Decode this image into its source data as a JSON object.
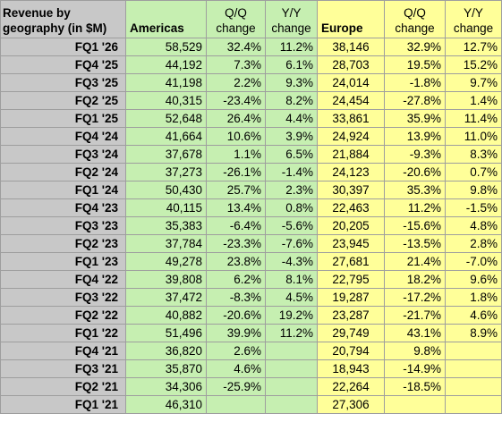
{
  "header": {
    "label": "Revenue by\ngeography (in $M)",
    "americas": "Americas",
    "europe": "Europe",
    "qq": "Q/Q\nchange",
    "yy": "Y/Y\nchange"
  },
  "rows": [
    {
      "q": "FQ1 '26",
      "a": "58,529",
      "aqq": "32.4%",
      "ayy": "11.2%",
      "e": "38,146",
      "eqq": "32.9%",
      "eyy": "12.7%"
    },
    {
      "q": "FQ4 '25",
      "a": "44,192",
      "aqq": "7.3%",
      "ayy": "6.1%",
      "e": "28,703",
      "eqq": "19.5%",
      "eyy": "15.2%"
    },
    {
      "q": "FQ3 '25",
      "a": "41,198",
      "aqq": "2.2%",
      "ayy": "9.3%",
      "e": "24,014",
      "eqq": "-1.8%",
      "eyy": "9.7%"
    },
    {
      "q": "FQ2 '25",
      "a": "40,315",
      "aqq": "-23.4%",
      "ayy": "8.2%",
      "e": "24,454",
      "eqq": "-27.8%",
      "eyy": "1.4%"
    },
    {
      "q": "FQ1 '25",
      "a": "52,648",
      "aqq": "26.4%",
      "ayy": "4.4%",
      "e": "33,861",
      "eqq": "35.9%",
      "eyy": "11.4%"
    },
    {
      "q": "FQ4 '24",
      "a": "41,664",
      "aqq": "10.6%",
      "ayy": "3.9%",
      "e": "24,924",
      "eqq": "13.9%",
      "eyy": "11.0%"
    },
    {
      "q": "FQ3 '24",
      "a": "37,678",
      "aqq": "1.1%",
      "ayy": "6.5%",
      "e": "21,884",
      "eqq": "-9.3%",
      "eyy": "8.3%"
    },
    {
      "q": "FQ2 '24",
      "a": "37,273",
      "aqq": "-26.1%",
      "ayy": "-1.4%",
      "e": "24,123",
      "eqq": "-20.6%",
      "eyy": "0.7%"
    },
    {
      "q": "FQ1 '24",
      "a": "50,430",
      "aqq": "25.7%",
      "ayy": "2.3%",
      "e": "30,397",
      "eqq": "35.3%",
      "eyy": "9.8%"
    },
    {
      "q": "FQ4 '23",
      "a": "40,115",
      "aqq": "13.4%",
      "ayy": "0.8%",
      "e": "22,463",
      "eqq": "11.2%",
      "eyy": "-1.5%"
    },
    {
      "q": "FQ3 '23",
      "a": "35,383",
      "aqq": "-6.4%",
      "ayy": "-5.6%",
      "e": "20,205",
      "eqq": "-15.6%",
      "eyy": "4.8%"
    },
    {
      "q": "FQ2 '23",
      "a": "37,784",
      "aqq": "-23.3%",
      "ayy": "-7.6%",
      "e": "23,945",
      "eqq": "-13.5%",
      "eyy": "2.8%"
    },
    {
      "q": "FQ1 '23",
      "a": "49,278",
      "aqq": "23.8%",
      "ayy": "-4.3%",
      "e": "27,681",
      "eqq": "21.4%",
      "eyy": "-7.0%"
    },
    {
      "q": "FQ4 '22",
      "a": "39,808",
      "aqq": "6.2%",
      "ayy": "8.1%",
      "e": "22,795",
      "eqq": "18.2%",
      "eyy": "9.6%"
    },
    {
      "q": "FQ3 '22",
      "a": "37,472",
      "aqq": "-8.3%",
      "ayy": "4.5%",
      "e": "19,287",
      "eqq": "-17.2%",
      "eyy": "1.8%"
    },
    {
      "q": "FQ2 '22",
      "a": "40,882",
      "aqq": "-20.6%",
      "ayy": "19.2%",
      "e": "23,287",
      "eqq": "-21.7%",
      "eyy": "4.6%"
    },
    {
      "q": "FQ1 '22",
      "a": "51,496",
      "aqq": "39.9%",
      "ayy": "11.2%",
      "e": "29,749",
      "eqq": "43.1%",
      "eyy": "8.9%"
    },
    {
      "q": "FQ4 '21",
      "a": "36,820",
      "aqq": "2.6%",
      "ayy": "",
      "e": "20,794",
      "eqq": "9.8%",
      "eyy": ""
    },
    {
      "q": "FQ3 '21",
      "a": "35,870",
      "aqq": "4.6%",
      "ayy": "",
      "e": "18,943",
      "eqq": "-14.9%",
      "eyy": ""
    },
    {
      "q": "FQ2 '21",
      "a": "34,306",
      "aqq": "-25.9%",
      "ayy": "",
      "e": "22,264",
      "eqq": "-18.5%",
      "eyy": ""
    },
    {
      "q": "FQ1 '21",
      "a": "46,310",
      "aqq": "",
      "ayy": "",
      "e": "27,306",
      "eqq": "",
      "eyy": ""
    }
  ]
}
